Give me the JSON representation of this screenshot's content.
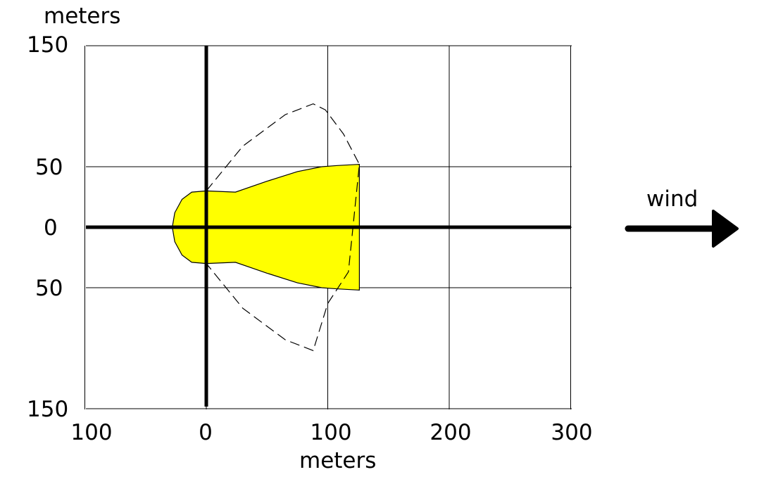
{
  "chart_data": {
    "type": "area",
    "title": "",
    "ylabel": "meters",
    "xlabel": "meters",
    "x_ticks": [
      {
        "label": "100",
        "value": -100
      },
      {
        "label": "0",
        "value": 0
      },
      {
        "label": "100",
        "value": 100
      },
      {
        "label": "200",
        "value": 200
      },
      {
        "label": "300",
        "value": 300
      }
    ],
    "y_ticks": [
      {
        "label": "150",
        "value": 150
      },
      {
        "label": "50",
        "value": 50
      },
      {
        "label": "0",
        "value": 0
      },
      {
        "label": "50",
        "value": -50
      },
      {
        "label": "150",
        "value": -150
      }
    ],
    "xlim": [
      -100,
      300
    ],
    "ylim": [
      -150,
      150
    ],
    "grid": true,
    "axes_through_origin": true,
    "series": [
      {
        "kind": "filled-area",
        "color": "#ffff00",
        "points": [
          [
            -28,
            0
          ],
          [
            -26,
            12
          ],
          [
            -20,
            23
          ],
          [
            -12,
            29
          ],
          [
            0,
            30
          ],
          [
            24,
            29
          ],
          [
            50,
            38
          ],
          [
            75,
            46
          ],
          [
            95,
            50
          ],
          [
            108,
            51
          ],
          [
            126,
            52
          ],
          [
            126,
            -52
          ],
          [
            108,
            -51
          ],
          [
            95,
            -50
          ],
          [
            75,
            -46
          ],
          [
            50,
            -38
          ],
          [
            24,
            -29
          ],
          [
            0,
            -30
          ],
          [
            -12,
            -29
          ],
          [
            -20,
            -23
          ],
          [
            -26,
            -12
          ]
        ]
      },
      {
        "kind": "dashed-outline",
        "color": "#000000",
        "points": [
          [
            0,
            30
          ],
          [
            30,
            67
          ],
          [
            65,
            93
          ],
          [
            88,
            102
          ],
          [
            98,
            97
          ],
          [
            113,
            77
          ],
          [
            126,
            52
          ],
          [
            117,
            -37
          ],
          [
            100,
            -63
          ],
          [
            88,
            -102
          ],
          [
            65,
            -93
          ],
          [
            30,
            -67
          ],
          [
            0,
            -30
          ]
        ]
      }
    ],
    "annotations": [
      {
        "text": "wind",
        "arrow": "right"
      }
    ]
  }
}
